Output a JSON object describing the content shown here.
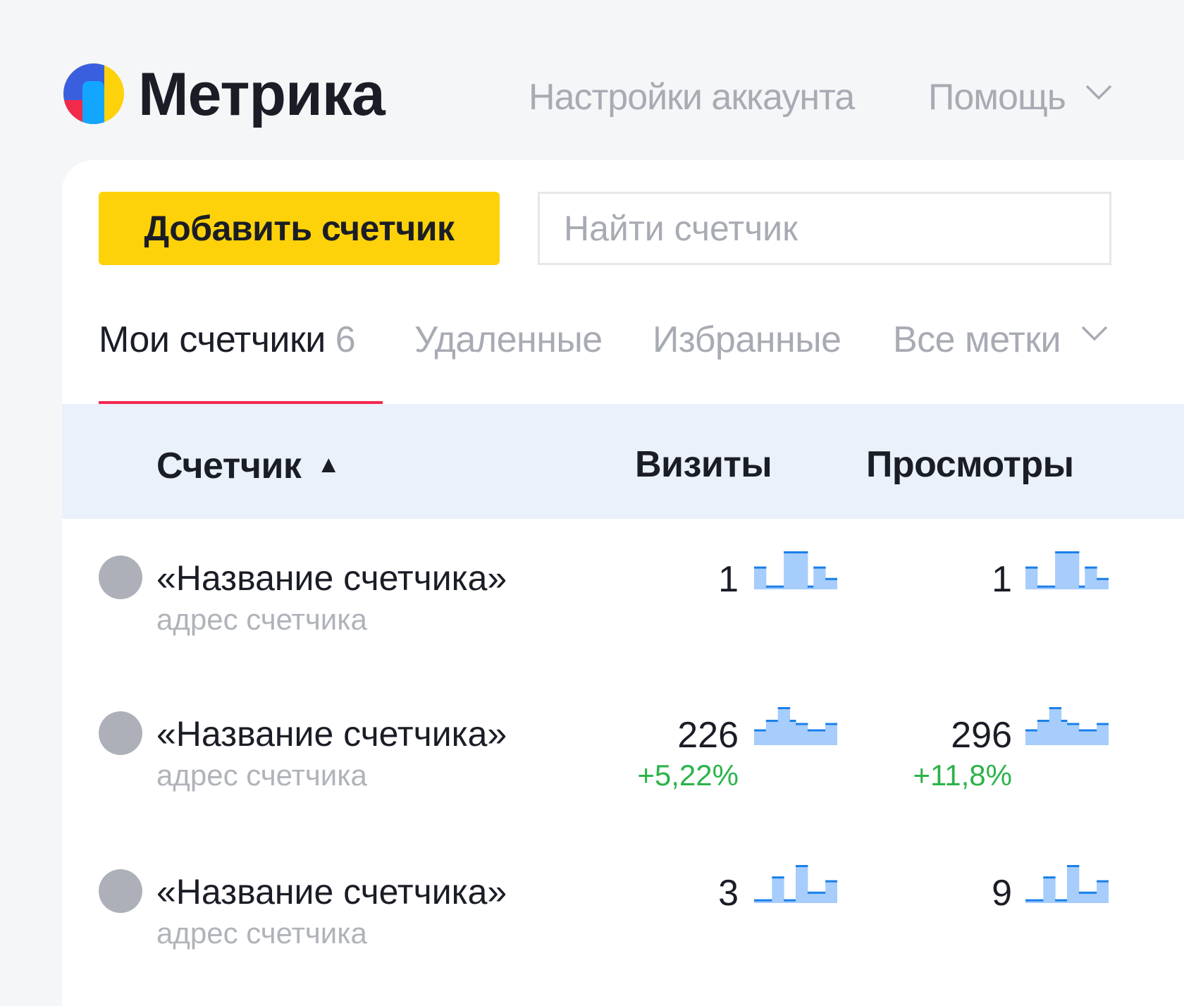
{
  "header": {
    "brand": "Метрика",
    "links": [
      {
        "label": "Настройки аккаунта"
      },
      {
        "label": "Помощь",
        "icon": "chevron-down-icon"
      }
    ]
  },
  "toolbar": {
    "add_button_label": "Добавить счетчик",
    "search_placeholder": "Найти счетчик",
    "search_value": ""
  },
  "tabs": [
    {
      "label": "Мои счетчики",
      "count": "6",
      "active": true
    },
    {
      "label": "Удаленные"
    },
    {
      "label": "Избранные"
    },
    {
      "label": "Все метки",
      "icon": "chevron-down-icon"
    }
  ],
  "table": {
    "columns": [
      {
        "label": "Счетчик",
        "sort": "ascending",
        "sort_icon": "▲"
      },
      {
        "label": "Визиты"
      },
      {
        "label": "Просмотры"
      }
    ],
    "rows": [
      {
        "name": "«Название счетчика»",
        "address": "адрес счетчика",
        "visits": "1",
        "visits_change": "",
        "views": "1",
        "views_change": "",
        "visits_trend": [
          6,
          6,
          1,
          1,
          1,
          10,
          10,
          10,
          10,
          1,
          6,
          6,
          3,
          3
        ],
        "views_trend": [
          6,
          6,
          1,
          1,
          1,
          10,
          10,
          10,
          10,
          1,
          6,
          6,
          3,
          3
        ]
      },
      {
        "name": "«Название счетчика»",
        "address": "адрес счетчика",
        "visits": "226",
        "visits_change": "+5,22%",
        "views": "296",
        "views_change": "+11,8%",
        "visits_trend": [
          5,
          5,
          8,
          8,
          12,
          12,
          8,
          7,
          7,
          5,
          5,
          5,
          7,
          7
        ],
        "views_trend": [
          5,
          5,
          8,
          8,
          12,
          12,
          8,
          7,
          7,
          5,
          5,
          5,
          7,
          7
        ]
      },
      {
        "name": "«Название счетчика»",
        "address": "адрес счетчика",
        "visits": "3",
        "visits_change": "",
        "views": "9",
        "views_change": "",
        "visits_trend": [
          1,
          1,
          1,
          7,
          7,
          1,
          1,
          10,
          10,
          3,
          3,
          3,
          6,
          6
        ],
        "views_trend": [
          1,
          1,
          1,
          7,
          7,
          1,
          1,
          10,
          10,
          3,
          3,
          3,
          6,
          6
        ]
      }
    ]
  },
  "colors": {
    "accent_yellow": "#fdd20a",
    "tab_underline": "#f5284e",
    "positive_change": "#2db34a",
    "spark_fill": "#a6cdfb",
    "spark_line": "#1a7fe8",
    "header_bg": "#eaf1fb"
  }
}
